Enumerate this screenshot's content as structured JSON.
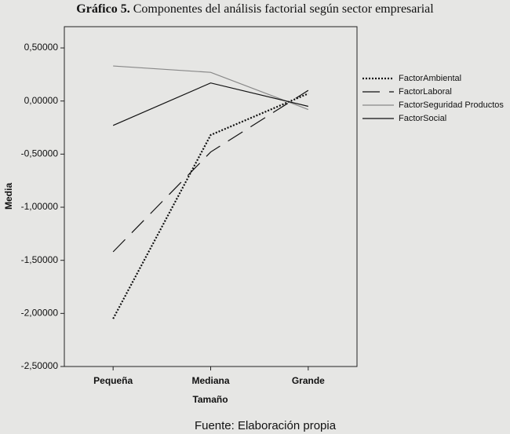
{
  "chart_data": {
    "type": "line",
    "title_label": "Gráfico 5.",
    "title": "Componentes del análisis factorial según sector empresarial",
    "x_label": "Tamaño",
    "y_label": "Media",
    "source": "Fuente: Elaboración propia",
    "categories": [
      "Pequeña",
      "Mediana",
      "Grande"
    ],
    "series": [
      {
        "name": "FactorAmbiental",
        "color": "#111111",
        "line_style": "dotted",
        "values": [
          -2.05,
          -0.32,
          0.07
        ]
      },
      {
        "name": "FactorLaboral",
        "color": "#111111",
        "line_style": "dashed",
        "values": [
          -1.42,
          -0.48,
          0.1
        ]
      },
      {
        "name": "FactorSeguridad Productos",
        "color": "#888888",
        "line_style": "solid",
        "values": [
          0.33,
          0.27,
          -0.08
        ]
      },
      {
        "name": "FactorSocial",
        "color": "#111111",
        "line_style": "solid",
        "values": [
          -0.23,
          0.17,
          -0.05
        ]
      }
    ],
    "ylim": [
      -2.5,
      0.7
    ],
    "yticks": [
      {
        "value": -2.5,
        "label": "-2,50000"
      },
      {
        "value": -2,
        "label": "-2,00000"
      },
      {
        "value": -1.5,
        "label": "-1,50000"
      },
      {
        "value": -1,
        "label": "-1,00000"
      },
      {
        "value": -0.5,
        "label": "-0,50000"
      },
      {
        "value": 0,
        "label": "0,00000"
      },
      {
        "value": 0.5,
        "label": "0,50000"
      }
    ],
    "legend": "right"
  }
}
